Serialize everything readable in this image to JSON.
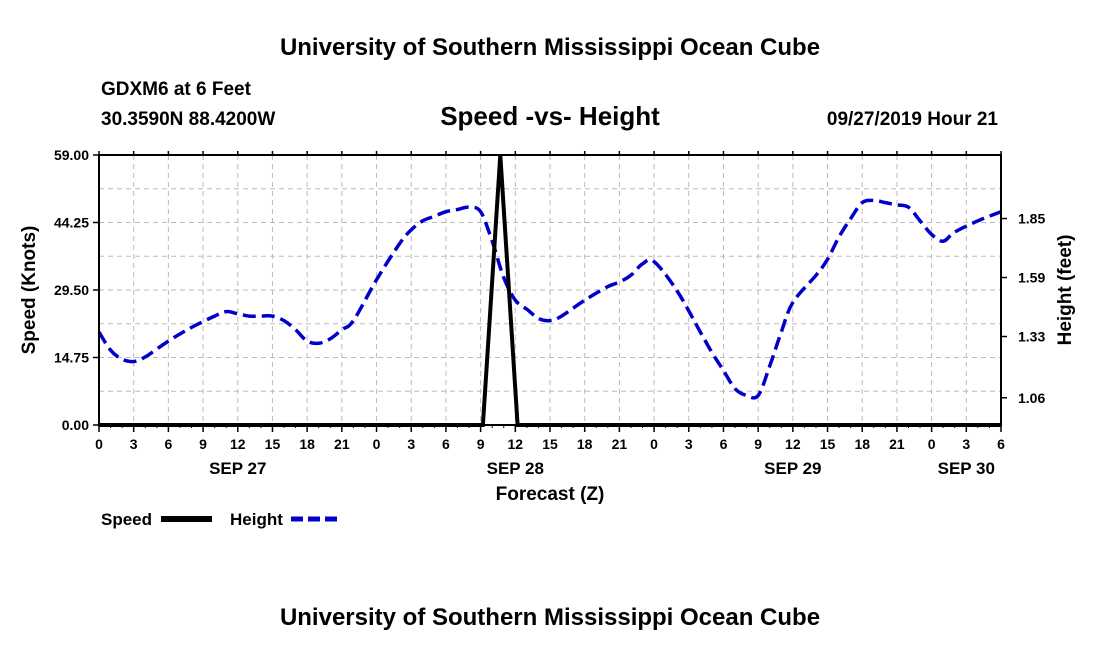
{
  "header": {
    "title": "University of Southern Mississippi Ocean Cube",
    "station": "GDXM6 at 6 Feet",
    "coords": "30.3590N 88.4200W",
    "subtitle": "Speed -vs- Height",
    "datetime": "09/27/2019 Hour 21"
  },
  "footer": {
    "title": "University of Southern Mississippi Ocean Cube"
  },
  "legend": {
    "speed_label": "Speed",
    "height_label": "Height"
  },
  "chart_data": {
    "type": "line",
    "title": "Speed -vs- Height",
    "xlabel": "Forecast (Z)",
    "ylabel_left": "Speed (Knots)",
    "ylabel_right": "Height (feet)",
    "x_unit": "hours from SEP 27 00Z",
    "xlim": [
      0,
      78
    ],
    "ylim_left": [
      0,
      59
    ],
    "ylim_right": [
      0.94,
      2.13
    ],
    "left_ticks": [
      "0.00",
      "14.75",
      "29.50",
      "44.25",
      "59.00"
    ],
    "left_tick_values": [
      0,
      14.75,
      29.5,
      44.25,
      59
    ],
    "right_ticks": [
      "1.06",
      "1.33",
      "1.59",
      "1.85"
    ],
    "right_tick_values": [
      1.06,
      1.33,
      1.59,
      1.85
    ],
    "x_ticks": [
      {
        "h": 0,
        "label": "0"
      },
      {
        "h": 3,
        "label": "3"
      },
      {
        "h": 6,
        "label": "6"
      },
      {
        "h": 9,
        "label": "9"
      },
      {
        "h": 12,
        "label": "12"
      },
      {
        "h": 15,
        "label": "15"
      },
      {
        "h": 18,
        "label": "18"
      },
      {
        "h": 21,
        "label": "21"
      },
      {
        "h": 24,
        "label": "0"
      },
      {
        "h": 27,
        "label": "3"
      },
      {
        "h": 30,
        "label": "6"
      },
      {
        "h": 33,
        "label": "9"
      },
      {
        "h": 36,
        "label": "12"
      },
      {
        "h": 39,
        "label": "15"
      },
      {
        "h": 42,
        "label": "18"
      },
      {
        "h": 45,
        "label": "21"
      },
      {
        "h": 48,
        "label": "0"
      },
      {
        "h": 51,
        "label": "3"
      },
      {
        "h": 54,
        "label": "6"
      },
      {
        "h": 57,
        "label": "9"
      },
      {
        "h": 60,
        "label": "12"
      },
      {
        "h": 63,
        "label": "15"
      },
      {
        "h": 66,
        "label": "18"
      },
      {
        "h": 69,
        "label": "21"
      },
      {
        "h": 72,
        "label": "0"
      },
      {
        "h": 75,
        "label": "3"
      },
      {
        "h": 78,
        "label": "6"
      }
    ],
    "date_labels": [
      {
        "h": 12,
        "label": "SEP 27"
      },
      {
        "h": 36,
        "label": "SEP 28"
      },
      {
        "h": 60,
        "label": "SEP 29"
      },
      {
        "h": 75,
        "label": "SEP 30"
      }
    ],
    "series": [
      {
        "name": "Speed",
        "axis": "left",
        "color": "#000000",
        "style": "solid",
        "x": [
          0,
          33.2,
          34.7,
          36.2,
          78
        ],
        "y": [
          0,
          0,
          59,
          0,
          0
        ]
      },
      {
        "name": "Height",
        "axis": "right",
        "color": "#0000cc",
        "style": "dashed",
        "x": [
          0,
          1,
          2,
          3,
          4,
          6,
          8,
          10,
          11,
          12,
          13,
          14,
          15,
          16,
          17,
          18,
          19,
          20,
          21,
          22,
          24,
          26,
          27,
          28,
          29,
          30,
          31,
          32,
          33,
          34,
          35,
          36,
          37,
          38,
          39,
          40,
          42,
          44,
          45,
          46,
          47,
          48,
          50,
          52,
          53,
          54,
          55,
          56,
          57,
          58,
          59,
          60,
          62,
          63,
          64,
          65,
          66,
          67,
          68,
          69,
          70,
          71,
          72,
          73,
          74,
          76,
          78
        ],
        "y": [
          1.35,
          1.27,
          1.23,
          1.22,
          1.24,
          1.31,
          1.37,
          1.42,
          1.44,
          1.43,
          1.42,
          1.42,
          1.42,
          1.4,
          1.36,
          1.31,
          1.3,
          1.32,
          1.36,
          1.4,
          1.58,
          1.74,
          1.8,
          1.84,
          1.86,
          1.88,
          1.89,
          1.9,
          1.88,
          1.75,
          1.59,
          1.49,
          1.45,
          1.41,
          1.4,
          1.42,
          1.49,
          1.55,
          1.57,
          1.6,
          1.65,
          1.66,
          1.53,
          1.35,
          1.26,
          1.18,
          1.1,
          1.07,
          1.07,
          1.2,
          1.35,
          1.48,
          1.6,
          1.67,
          1.77,
          1.85,
          1.92,
          1.93,
          1.92,
          1.91,
          1.9,
          1.84,
          1.78,
          1.75,
          1.79,
          1.84,
          1.88
        ]
      }
    ],
    "grid": true,
    "legend_position": "bottom-left"
  }
}
